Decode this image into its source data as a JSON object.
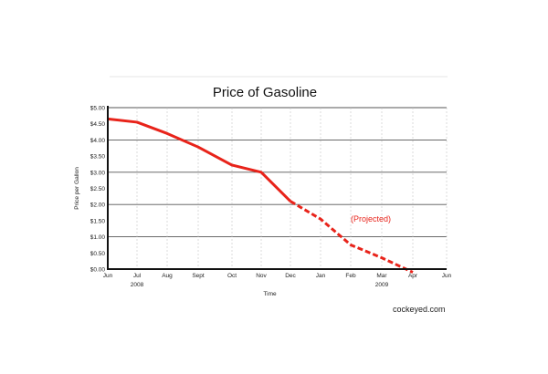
{
  "chart_data": {
    "type": "line",
    "title": "Price of Gasoline",
    "xlabel": "Time",
    "ylabel": "Price per Gallon",
    "x_tick_labels": [
      "Jun",
      "Jul",
      "Aug",
      "Sept",
      "Oct",
      "Nov",
      "Dec",
      "Jan",
      "Feb",
      "Mar",
      "Apr",
      "Jun"
    ],
    "x_year_labels": [
      {
        "under": "Jul",
        "label": "2008"
      },
      {
        "under": "Mar",
        "label": "2009"
      }
    ],
    "y_tick_labels": [
      "$0.00",
      "$0.50",
      "$1.00",
      "$1.50",
      "$2.00",
      "$2.50",
      "$3.00",
      "$3.50",
      "$4.00",
      "$4.50",
      "$5.00"
    ],
    "ylim": [
      0,
      5
    ],
    "grid": "horizontal lines at whole dollars, dashed vertical month lines",
    "series": [
      {
        "style": "solid",
        "color": "#e8231a",
        "points": [
          {
            "x": "Jun",
            "y": 4.65
          },
          {
            "x": "Jul",
            "y": 4.55
          },
          {
            "x": "Aug",
            "y": 4.2
          },
          {
            "x": "Sept",
            "y": 3.78
          },
          {
            "x": "Oct",
            "y": 3.22
          },
          {
            "x": "Nov",
            "y": 3.0
          },
          {
            "x": "Dec",
            "y": 2.1
          }
        ]
      },
      {
        "style": "dashed",
        "color": "#e8231a",
        "points": [
          {
            "x": "Dec",
            "y": 2.1
          },
          {
            "x": "Jan",
            "y": 1.55
          },
          {
            "x": "Feb",
            "y": 0.75
          },
          {
            "x": "Mar",
            "y": 0.35
          },
          {
            "x": "Apr",
            "y": -0.1
          }
        ]
      }
    ],
    "annotations": [
      {
        "text": "(Projected)",
        "at": {
          "x": "Feb",
          "y": 1.55
        },
        "color": "#e8231a"
      }
    ]
  },
  "credit": "cockeyed.com"
}
